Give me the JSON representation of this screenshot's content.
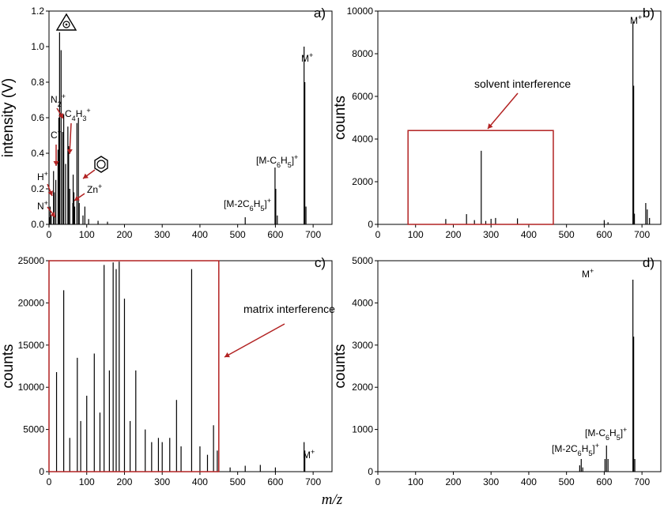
{
  "chart_data": [
    {
      "panel": "a)",
      "type": "line",
      "ylabel": "intensity (V)",
      "xlim": [
        0,
        750
      ],
      "ylim": [
        0,
        1.2
      ],
      "xticks": [
        0,
        100,
        200,
        300,
        400,
        500,
        600,
        700
      ],
      "yticks": [
        "0.0",
        "0.2",
        "0.4",
        "0.6",
        "0.8",
        "1.0",
        "1.2"
      ],
      "peaks": [
        {
          "x": 1,
          "y": 0.04
        },
        {
          "x": 3,
          "y": 0.1
        },
        {
          "x": 6,
          "y": 0.05
        },
        {
          "x": 12,
          "y": 0.3
        },
        {
          "x": 14,
          "y": 0.18
        },
        {
          "x": 18,
          "y": 0.25
        },
        {
          "x": 24,
          "y": 0.42
        },
        {
          "x": 26,
          "y": 0.6
        },
        {
          "x": 28,
          "y": 1.08
        },
        {
          "x": 32,
          "y": 0.98
        },
        {
          "x": 36,
          "y": 0.52
        },
        {
          "x": 39,
          "y": 0.62
        },
        {
          "x": 44,
          "y": 0.34
        },
        {
          "x": 50,
          "y": 0.55
        },
        {
          "x": 52,
          "y": 0.44
        },
        {
          "x": 55,
          "y": 0.2
        },
        {
          "x": 63,
          "y": 0.12
        },
        {
          "x": 64,
          "y": 0.28
        },
        {
          "x": 66,
          "y": 0.18
        },
        {
          "x": 68,
          "y": 0.1
        },
        {
          "x": 74,
          "y": 0.57
        },
        {
          "x": 78,
          "y": 0.6
        },
        {
          "x": 80,
          "y": 0.12
        },
        {
          "x": 90,
          "y": 0.05
        },
        {
          "x": 95,
          "y": 0.1
        },
        {
          "x": 105,
          "y": 0.03
        },
        {
          "x": 130,
          "y": 0.02
        },
        {
          "x": 155,
          "y": 0.015
        },
        {
          "x": 520,
          "y": 0.04
        },
        {
          "x": 599,
          "y": 0.32
        },
        {
          "x": 601,
          "y": 0.2
        },
        {
          "x": 605,
          "y": 0.05
        },
        {
          "x": 676,
          "y": 1.0
        },
        {
          "x": 678,
          "y": 0.8
        },
        {
          "x": 681,
          "y": 0.1
        }
      ],
      "annotations": [
        "N+",
        "H+",
        "C+",
        "N2+",
        "C4H3+",
        "Zn+",
        "[M-2C6H5]+",
        "[M-C6H5]+",
        "M+"
      ]
    },
    {
      "panel": "b)",
      "type": "line",
      "ylabel": "counts",
      "xlim": [
        0,
        750
      ],
      "ylim": [
        0,
        10000
      ],
      "xticks": [
        0,
        100,
        200,
        300,
        400,
        500,
        600,
        700
      ],
      "yticks": [
        "0",
        "2000",
        "4000",
        "6000",
        "8000",
        "10000"
      ],
      "peaks": [
        {
          "x": 180,
          "y": 250
        },
        {
          "x": 235,
          "y": 480
        },
        {
          "x": 256,
          "y": 200
        },
        {
          "x": 274,
          "y": 3450
        },
        {
          "x": 286,
          "y": 160
        },
        {
          "x": 300,
          "y": 260
        },
        {
          "x": 312,
          "y": 300
        },
        {
          "x": 370,
          "y": 280
        },
        {
          "x": 600,
          "y": 200
        },
        {
          "x": 610,
          "y": 100
        },
        {
          "x": 676,
          "y": 9500
        },
        {
          "x": 678,
          "y": 6500
        },
        {
          "x": 680,
          "y": 500
        },
        {
          "x": 710,
          "y": 1000
        },
        {
          "x": 714,
          "y": 700
        },
        {
          "x": 720,
          "y": 300
        }
      ],
      "annotations": [
        "M+",
        "solvent interference"
      ],
      "highlight_box": {
        "xmin": 80,
        "xmax": 465,
        "ymax": 4400
      }
    },
    {
      "panel": "c)",
      "type": "line",
      "ylabel": "counts",
      "xlim": [
        0,
        750
      ],
      "ylim": [
        0,
        25000
      ],
      "xticks": [
        0,
        100,
        200,
        300,
        400,
        500,
        600,
        700
      ],
      "yticks": [
        "0",
        "5000",
        "10000",
        "15000",
        "20000",
        "25000"
      ],
      "peaks": [
        {
          "x": 20,
          "y": 11800
        },
        {
          "x": 39,
          "y": 21500
        },
        {
          "x": 55,
          "y": 4000
        },
        {
          "x": 75,
          "y": 13500
        },
        {
          "x": 84,
          "y": 6000
        },
        {
          "x": 100,
          "y": 9000
        },
        {
          "x": 120,
          "y": 14000
        },
        {
          "x": 135,
          "y": 7000
        },
        {
          "x": 146,
          "y": 24500
        },
        {
          "x": 160,
          "y": 12000
        },
        {
          "x": 170,
          "y": 24800
        },
        {
          "x": 178,
          "y": 24000
        },
        {
          "x": 186,
          "y": 24900
        },
        {
          "x": 200,
          "y": 20500
        },
        {
          "x": 215,
          "y": 6000
        },
        {
          "x": 230,
          "y": 12000
        },
        {
          "x": 255,
          "y": 5000
        },
        {
          "x": 272,
          "y": 3500
        },
        {
          "x": 290,
          "y": 4000
        },
        {
          "x": 300,
          "y": 3500
        },
        {
          "x": 320,
          "y": 4000
        },
        {
          "x": 338,
          "y": 8500
        },
        {
          "x": 350,
          "y": 3000
        },
        {
          "x": 378,
          "y": 24000
        },
        {
          "x": 400,
          "y": 3000
        },
        {
          "x": 420,
          "y": 2000
        },
        {
          "x": 436,
          "y": 5500
        },
        {
          "x": 446,
          "y": 2500
        },
        {
          "x": 480,
          "y": 500
        },
        {
          "x": 520,
          "y": 700
        },
        {
          "x": 560,
          "y": 800
        },
        {
          "x": 600,
          "y": 500
        },
        {
          "x": 676,
          "y": 3500
        },
        {
          "x": 678,
          "y": 2500
        }
      ],
      "annotations": [
        "M+",
        "matrix interference"
      ],
      "highlight_box": {
        "xmin": 0,
        "xmax": 450,
        "ymax": 25000
      }
    },
    {
      "panel": "d)",
      "type": "line",
      "ylabel": "counts",
      "xlabel": "m/z",
      "xlim": [
        0,
        750
      ],
      "ylim": [
        0,
        5000
      ],
      "xticks": [
        0,
        100,
        200,
        300,
        400,
        500,
        600,
        700
      ],
      "yticks": [
        "0",
        "1000",
        "2000",
        "3000",
        "4000",
        "5000"
      ],
      "peaks": [
        {
          "x": 535,
          "y": 150
        },
        {
          "x": 539,
          "y": 300
        },
        {
          "x": 543,
          "y": 100
        },
        {
          "x": 602,
          "y": 300
        },
        {
          "x": 606,
          "y": 620
        },
        {
          "x": 610,
          "y": 300
        },
        {
          "x": 676,
          "y": 4550
        },
        {
          "x": 678,
          "y": 3200
        },
        {
          "x": 681,
          "y": 300
        }
      ],
      "annotations": [
        "M+",
        "[M-C6H5]+",
        "[M-2C6H5]+"
      ]
    }
  ],
  "labels": {
    "a": {
      "N": "N",
      "H": "H",
      "C": "C",
      "N2": "N",
      "C4H3": "C",
      "Zn": "Zn",
      "M2": "[M-2C",
      "M1": "[M-C",
      "M": "M",
      "sub2": "2",
      "sub4": "4",
      "sub3": "3",
      "sub6": "6",
      "sub5": "5",
      "plus": "+",
      "close": "]"
    },
    "b_box": "solvent interference",
    "c_box": "matrix interference"
  },
  "colors": {
    "accent": "#b22222",
    "trace": "#000000"
  }
}
